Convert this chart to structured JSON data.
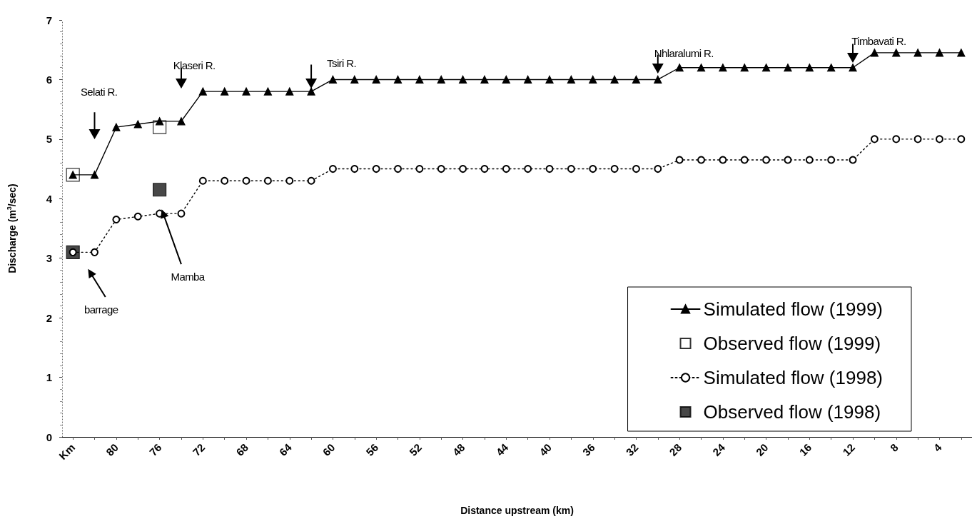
{
  "chart_data": {
    "type": "line",
    "xlabel": "Distance upstream (km)",
    "ylabel": "Discharge (m$^{3}$/sec)",
    "categories": [
      "Km",
      null,
      "80",
      null,
      "76",
      null,
      "72",
      null,
      "68",
      null,
      "64",
      null,
      "60",
      null,
      "56",
      null,
      "52",
      null,
      "48",
      null,
      "44",
      null,
      "40",
      null,
      "36",
      null,
      "32",
      null,
      "28",
      null,
      "24",
      null,
      "20",
      null,
      "16",
      null,
      "12",
      null,
      "8",
      null,
      "4",
      null
    ],
    "series": [
      {
        "name": "Simulated flow (1999)",
        "type": "line",
        "color": "#000000",
        "marker": "triangle",
        "line_style": "solid",
        "values": [
          4.4,
          4.4,
          5.2,
          5.25,
          5.3,
          5.3,
          5.8,
          5.8,
          5.8,
          5.8,
          5.8,
          5.8,
          6.0,
          6.0,
          6.0,
          6.0,
          6.0,
          6.0,
          6.0,
          6.0,
          6.0,
          6.0,
          6.0,
          6.0,
          6.0,
          6.0,
          6.0,
          6.0,
          6.2,
          6.2,
          6.2,
          6.2,
          6.2,
          6.2,
          6.2,
          6.2,
          6.2,
          6.45,
          6.45,
          6.45,
          6.45,
          6.45
        ]
      },
      {
        "name": "Observed flow (1999)",
        "type": "scatter",
        "color": "#ffffff",
        "marker": "square",
        "values": [
          4.4,
          null,
          null,
          null,
          5.2,
          null,
          null,
          null,
          null,
          null,
          null,
          null,
          null,
          null,
          null,
          null,
          null,
          null,
          null,
          null,
          null,
          null,
          null,
          null,
          null,
          null,
          null,
          null,
          null,
          null,
          null,
          null,
          null,
          null,
          null,
          null,
          null,
          null,
          null,
          null,
          null,
          null
        ]
      },
      {
        "name": "Simulated flow (1998)",
        "type": "line",
        "color": "#000000",
        "marker": "circle",
        "line_style": "dotted",
        "values": [
          3.1,
          3.1,
          3.65,
          3.7,
          3.75,
          3.75,
          4.3,
          4.3,
          4.3,
          4.3,
          4.3,
          4.3,
          4.5,
          4.5,
          4.5,
          4.5,
          4.5,
          4.5,
          4.5,
          4.5,
          4.5,
          4.5,
          4.5,
          4.5,
          4.5,
          4.5,
          4.5,
          4.5,
          4.65,
          4.65,
          4.65,
          4.65,
          4.65,
          4.65,
          4.65,
          4.65,
          4.65,
          5.0,
          5.0,
          5.0,
          5.0,
          5.0
        ]
      },
      {
        "name": "Observed flow (1998)",
        "type": "scatter",
        "color": "#1a1a1a",
        "marker": "square",
        "values": [
          3.1,
          null,
          null,
          null,
          4.15,
          null,
          null,
          null,
          null,
          null,
          null,
          null,
          null,
          null,
          null,
          null,
          null,
          null,
          null,
          null,
          null,
          null,
          null,
          null,
          null,
          null,
          null,
          null,
          null,
          null,
          null,
          null,
          null,
          null,
          null,
          null,
          null,
          null,
          null,
          null,
          null,
          null
        ]
      }
    ],
    "ylim": [
      0,
      7
    ],
    "yticks": [
      0,
      1,
      2,
      3,
      4,
      5,
      6,
      7
    ],
    "grid": false,
    "legend": "bottom right",
    "annotations": [
      "Selati R.",
      "Klaseri R.",
      "Tsiri R.",
      "Nhlaralumi R.",
      "Timbavati R.",
      "Mamba",
      "barrage"
    ]
  }
}
